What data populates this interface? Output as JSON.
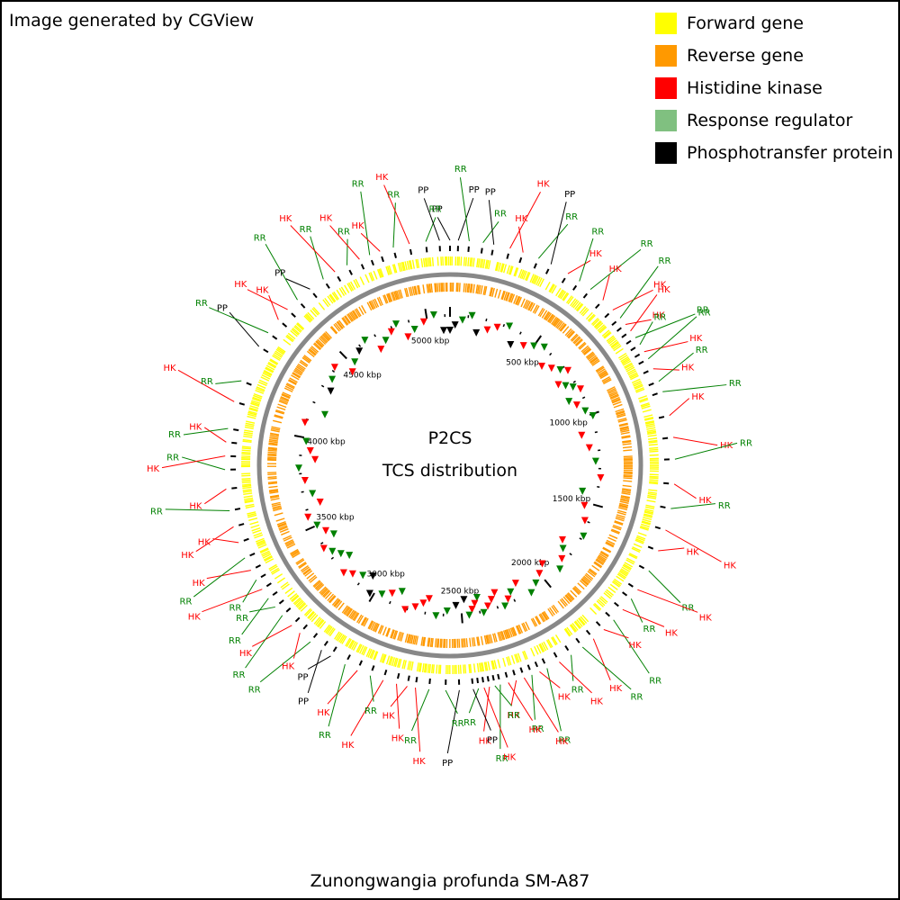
{
  "credit": "Image generated by CGView",
  "legend": [
    {
      "label": "Forward gene",
      "color": "#ffff00"
    },
    {
      "label": "Reverse gene",
      "color": "#ff9900"
    },
    {
      "label": "Histidine kinase",
      "color": "#ff0000"
    },
    {
      "label": "Response regulator",
      "color": "#80c080"
    },
    {
      "label": "Phosphotransfer protein",
      "color": "#000000"
    }
  ],
  "center": {
    "title": "P2CS",
    "subtitle": "TCS distribution"
  },
  "footer": "Zunongwangia profunda SM-A87",
  "colors": {
    "forward": "#ffff00",
    "reverse": "#ff9900",
    "HK": "#ff0000",
    "RR": "#008000",
    "PP": "#000000",
    "backbone": "#888888"
  },
  "genome_size_kbp": 5128,
  "scale_labels": [
    "500 kbp",
    "1000 kbp",
    "1500 kbp",
    "2000 kbp",
    "2500 kbp",
    "3000 kbp",
    "3500 kbp",
    "4000 kbp",
    "4500 kbp",
    "5000 kbp"
  ],
  "chart_data": {
    "type": "circular-genome-map",
    "features": [
      {
        "kbp": 0,
        "type": "PP"
      },
      {
        "kbp": 30,
        "type": "PP"
      },
      {
        "kbp": 70,
        "type": "RR"
      },
      {
        "kbp": 120,
        "type": "RR"
      },
      {
        "kbp": 160,
        "type": "PP"
      },
      {
        "kbp": 220,
        "type": "HK"
      },
      {
        "kbp": 270,
        "type": "HK"
      },
      {
        "kbp": 330,
        "type": "RR"
      },
      {
        "kbp": 380,
        "type": "PP"
      },
      {
        "kbp": 450,
        "type": "HK"
      },
      {
        "kbp": 500,
        "type": "RR"
      },
      {
        "kbp": 550,
        "type": "RR"
      },
      {
        "kbp": 610,
        "type": "HK"
      },
      {
        "kbp": 660,
        "type": "HK"
      },
      {
        "kbp": 700,
        "type": "RR"
      },
      {
        "kbp": 730,
        "type": "HK"
      },
      {
        "kbp": 760,
        "type": "HK"
      },
      {
        "kbp": 790,
        "type": "RR"
      },
      {
        "kbp": 820,
        "type": "RR"
      },
      {
        "kbp": 850,
        "type": "HK"
      },
      {
        "kbp": 880,
        "type": "RR"
      },
      {
        "kbp": 920,
        "type": "HK"
      },
      {
        "kbp": 970,
        "type": "RR"
      },
      {
        "kbp": 1010,
        "type": "RR"
      },
      {
        "kbp": 1100,
        "type": "HK"
      },
      {
        "kbp": 1180,
        "type": "HK"
      },
      {
        "kbp": 1260,
        "type": "RR"
      },
      {
        "kbp": 1350,
        "type": "HK"
      },
      {
        "kbp": 1440,
        "type": "RR"
      },
      {
        "kbp": 1520,
        "type": "HK"
      },
      {
        "kbp": 1600,
        "type": "HK"
      },
      {
        "kbp": 1680,
        "type": "RR"
      },
      {
        "kbp": 1760,
        "type": "HK"
      },
      {
        "kbp": 1800,
        "type": "RR"
      },
      {
        "kbp": 1850,
        "type": "HK"
      },
      {
        "kbp": 1900,
        "type": "RR"
      },
      {
        "kbp": 1950,
        "type": "HK"
      },
      {
        "kbp": 2000,
        "type": "HK"
      },
      {
        "kbp": 2050,
        "type": "RR"
      },
      {
        "kbp": 2100,
        "type": "RR"
      },
      {
        "kbp": 2150,
        "type": "HK"
      },
      {
        "kbp": 2200,
        "type": "RR"
      },
      {
        "kbp": 2230,
        "type": "HK"
      },
      {
        "kbp": 2260,
        "type": "RR"
      },
      {
        "kbp": 2290,
        "type": "HK"
      },
      {
        "kbp": 2320,
        "type": "HK"
      },
      {
        "kbp": 2350,
        "type": "HK"
      },
      {
        "kbp": 2380,
        "type": "RR"
      },
      {
        "kbp": 2400,
        "type": "RR"
      },
      {
        "kbp": 2420,
        "type": "HK"
      },
      {
        "kbp": 2440,
        "type": "HK"
      },
      {
        "kbp": 2460,
        "type": "RR"
      },
      {
        "kbp": 2480,
        "type": "PP"
      },
      {
        "kbp": 2530,
        "type": "PP"
      },
      {
        "kbp": 2580,
        "type": "RR"
      },
      {
        "kbp": 2640,
        "type": "RR"
      },
      {
        "kbp": 2690,
        "type": "HK"
      },
      {
        "kbp": 2720,
        "type": "HK"
      },
      {
        "kbp": 2760,
        "type": "HK"
      },
      {
        "kbp": 2810,
        "type": "HK"
      },
      {
        "kbp": 2860,
        "type": "RR"
      },
      {
        "kbp": 2910,
        "type": "HK"
      },
      {
        "kbp": 2960,
        "type": "RR"
      },
      {
        "kbp": 3020,
        "type": "PP"
      },
      {
        "kbp": 3060,
        "type": "PP"
      },
      {
        "kbp": 3110,
        "type": "RR"
      },
      {
        "kbp": 3160,
        "type": "HK"
      },
      {
        "kbp": 3200,
        "type": "HK"
      },
      {
        "kbp": 3250,
        "type": "RR"
      },
      {
        "kbp": 3290,
        "type": "RR"
      },
      {
        "kbp": 3330,
        "type": "RR"
      },
      {
        "kbp": 3370,
        "type": "HK"
      },
      {
        "kbp": 3410,
        "type": "RR"
      },
      {
        "kbp": 3450,
        "type": "HK"
      },
      {
        "kbp": 3500,
        "type": "RR"
      },
      {
        "kbp": 3560,
        "type": "HK"
      },
      {
        "kbp": 3620,
        "type": "HK"
      },
      {
        "kbp": 3680,
        "type": "RR"
      },
      {
        "kbp": 3760,
        "type": "HK"
      },
      {
        "kbp": 3830,
        "type": "RR"
      },
      {
        "kbp": 3880,
        "type": "HK"
      },
      {
        "kbp": 3930,
        "type": "HK"
      },
      {
        "kbp": 3980,
        "type": "RR"
      },
      {
        "kbp": 4080,
        "type": "HK"
      },
      {
        "kbp": 4160,
        "type": "RR"
      },
      {
        "kbp": 4300,
        "type": "PP"
      },
      {
        "kbp": 4360,
        "type": "RR"
      },
      {
        "kbp": 4420,
        "type": "HK"
      },
      {
        "kbp": 4470,
        "type": "HK"
      },
      {
        "kbp": 4520,
        "type": "RR"
      },
      {
        "kbp": 4580,
        "type": "PP"
      },
      {
        "kbp": 4640,
        "type": "RR"
      },
      {
        "kbp": 4690,
        "type": "HK"
      },
      {
        "kbp": 4740,
        "type": "RR"
      },
      {
        "kbp": 4790,
        "type": "HK"
      },
      {
        "kbp": 4830,
        "type": "RR"
      },
      {
        "kbp": 4870,
        "type": "HK"
      },
      {
        "kbp": 4920,
        "type": "RR"
      },
      {
        "kbp": 4980,
        "type": "HK"
      },
      {
        "kbp": 5040,
        "type": "RR"
      },
      {
        "kbp": 5090,
        "type": "PP"
      }
    ]
  }
}
